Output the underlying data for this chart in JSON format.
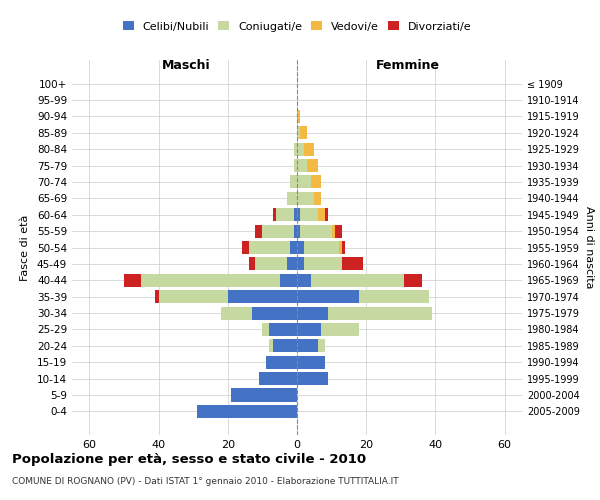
{
  "age_groups": [
    "0-4",
    "5-9",
    "10-14",
    "15-19",
    "20-24",
    "25-29",
    "30-34",
    "35-39",
    "40-44",
    "45-49",
    "50-54",
    "55-59",
    "60-64",
    "65-69",
    "70-74",
    "75-79",
    "80-84",
    "85-89",
    "90-94",
    "95-99",
    "100+"
  ],
  "birth_years": [
    "2005-2009",
    "2000-2004",
    "1995-1999",
    "1990-1994",
    "1985-1989",
    "1980-1984",
    "1975-1979",
    "1970-1974",
    "1965-1969",
    "1960-1964",
    "1955-1959",
    "1950-1954",
    "1945-1949",
    "1940-1944",
    "1935-1939",
    "1930-1934",
    "1925-1929",
    "1920-1924",
    "1915-1919",
    "1910-1914",
    "≤ 1909"
  ],
  "colors": {
    "celibi": "#4472c4",
    "coniugati": "#c5d9a0",
    "vedovi": "#f4b942",
    "divorziati": "#cc2222"
  },
  "males": {
    "celibi": [
      29,
      19,
      11,
      9,
      7,
      8,
      13,
      20,
      5,
      3,
      2,
      1,
      1,
      0,
      0,
      0,
      0,
      0,
      0,
      0,
      0
    ],
    "coniugati": [
      0,
      0,
      0,
      0,
      1,
      2,
      9,
      20,
      40,
      9,
      12,
      9,
      5,
      3,
      2,
      1,
      1,
      0,
      0,
      0,
      0
    ],
    "vedovi": [
      0,
      0,
      0,
      0,
      0,
      0,
      0,
      0,
      0,
      0,
      0,
      0,
      0,
      0,
      0,
      0,
      0,
      0,
      0,
      0,
      0
    ],
    "divorziati": [
      0,
      0,
      0,
      0,
      0,
      0,
      0,
      1,
      5,
      2,
      2,
      2,
      1,
      0,
      0,
      0,
      0,
      0,
      0,
      0,
      0
    ]
  },
  "females": {
    "celibi": [
      0,
      0,
      9,
      8,
      6,
      7,
      9,
      18,
      4,
      2,
      2,
      1,
      1,
      0,
      0,
      0,
      0,
      0,
      0,
      0,
      0
    ],
    "coniugati": [
      0,
      0,
      0,
      0,
      2,
      11,
      30,
      20,
      27,
      11,
      10,
      9,
      5,
      5,
      4,
      3,
      2,
      1,
      0,
      0,
      0
    ],
    "vedovi": [
      0,
      0,
      0,
      0,
      0,
      0,
      0,
      0,
      0,
      0,
      1,
      1,
      2,
      2,
      3,
      3,
      3,
      2,
      1,
      0,
      0
    ],
    "divorziati": [
      0,
      0,
      0,
      0,
      0,
      0,
      0,
      0,
      5,
      6,
      1,
      2,
      1,
      0,
      0,
      0,
      0,
      0,
      0,
      0,
      0
    ]
  },
  "xlim": 65,
  "title": "Popolazione per età, sesso e stato civile - 2010",
  "subtitle": "COMUNE DI ROGNANO (PV) - Dati ISTAT 1° gennaio 2010 - Elaborazione TUTTITALIA.IT",
  "ylabel_left": "Fasce di età",
  "ylabel_right": "Anni di nascita",
  "label_maschi": "Maschi",
  "label_femmine": "Femmine",
  "legend_labels": [
    "Celibi/Nubili",
    "Coniugati/e",
    "Vedovi/e",
    "Divorziati/e"
  ]
}
